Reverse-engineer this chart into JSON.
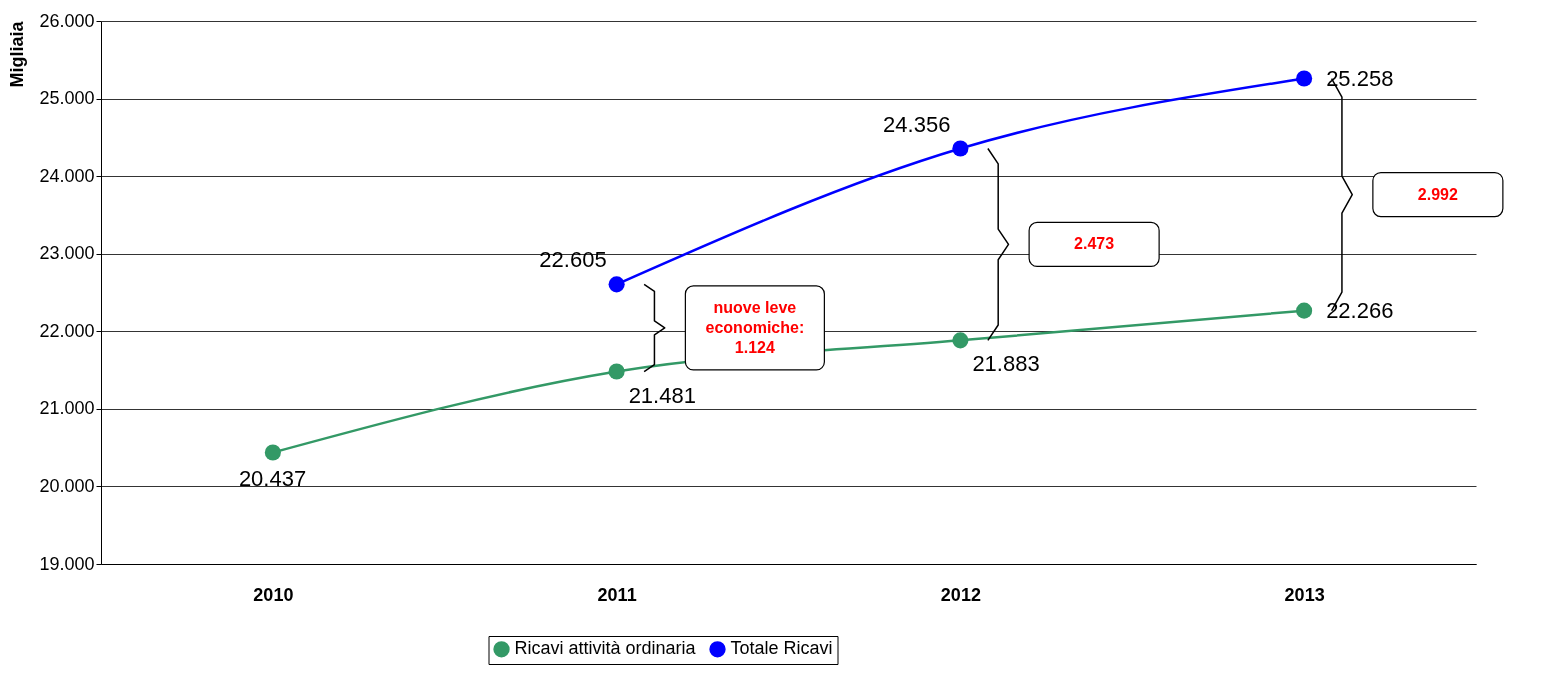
{
  "chart_data": {
    "type": "line",
    "ylabel": "Migliaia",
    "categories": [
      "2010",
      "2011",
      "2012",
      "2013"
    ],
    "series": [
      {
        "name": "Ricavi attività ordinaria",
        "color": "#339966",
        "values": [
          20437,
          21481,
          21883,
          22266
        ],
        "value_labels": [
          "20.437",
          "21.481",
          "21.883",
          "22.266"
        ]
      },
      {
        "name": "Totale Ricavi",
        "color": "#0000ff",
        "values": [
          null,
          22605,
          24356,
          25258
        ],
        "value_labels": [
          null,
          "22.605",
          "24.356",
          "25.258"
        ]
      }
    ],
    "ylim": [
      19000,
      26000
    ],
    "yticks": [
      {
        "value": 19000,
        "label": "19.000"
      },
      {
        "value": 20000,
        "label": "20.000"
      },
      {
        "value": 21000,
        "label": "21.000"
      },
      {
        "value": 22000,
        "label": "22.000"
      },
      {
        "value": 23000,
        "label": "23.000"
      },
      {
        "value": 24000,
        "label": "24.000"
      },
      {
        "value": 25000,
        "label": "25.000"
      },
      {
        "value": 26000,
        "label": "26.000"
      }
    ],
    "grid": "y",
    "legend": "bottom",
    "marker": "circle",
    "line_style": "solid",
    "annotations": [
      "nuove leve economiche: 1.124",
      "2.473",
      "2.992"
    ]
  }
}
